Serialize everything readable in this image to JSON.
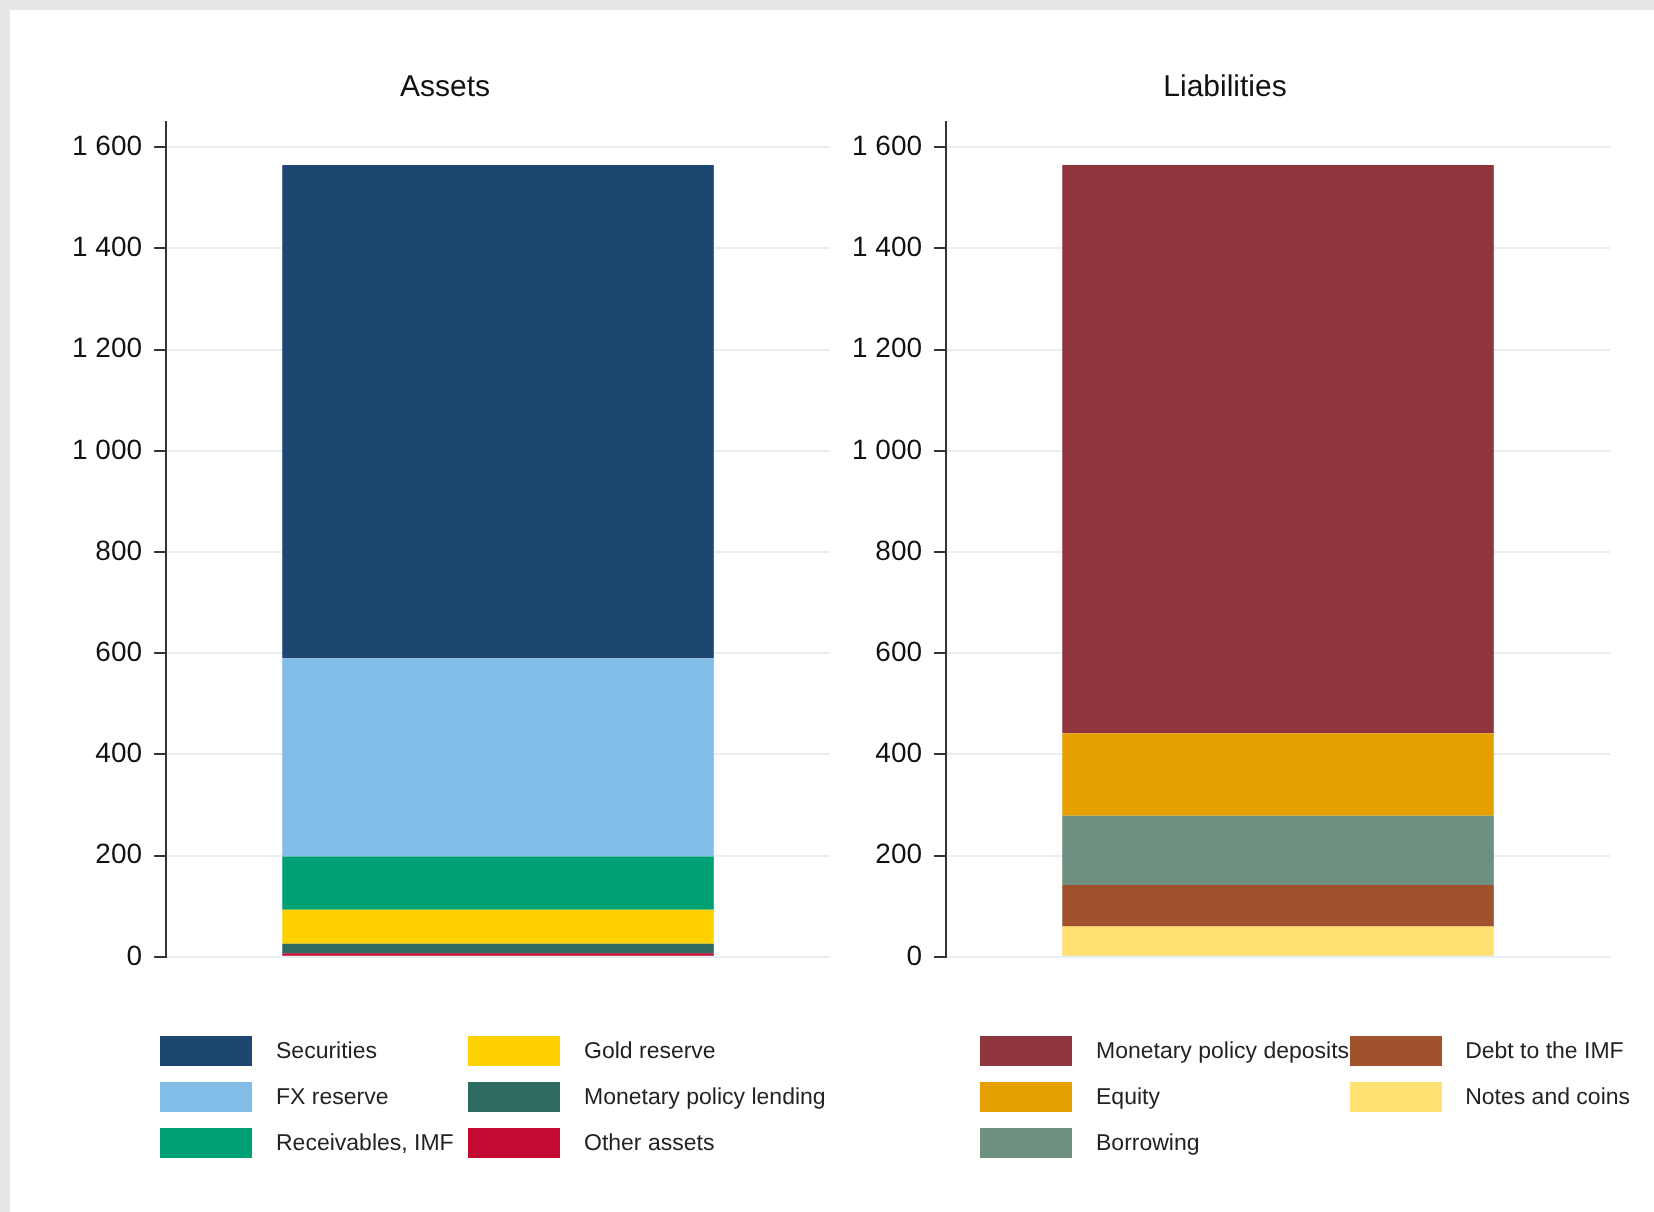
{
  "chart_data": [
    {
      "type": "bar",
      "title": "Assets",
      "categories": [
        null
      ],
      "stacked": true,
      "grid": "y",
      "legend": "bottom",
      "ylim": [
        0,
        1650
      ],
      "yticks": [
        0,
        200,
        400,
        600,
        800,
        {
          "value": 1000,
          "label": "1 000"
        },
        {
          "value": 1200,
          "label": "1 200"
        },
        {
          "value": 1400,
          "label": "1 400"
        },
        {
          "value": 1600,
          "label": "1 600"
        }
      ],
      "series": [
        {
          "name": "Other assets",
          "color": "#c20a33",
          "values": [
            7
          ]
        },
        {
          "name": "Monetary policy lending",
          "color": "#2e6b61",
          "values": [
            19
          ]
        },
        {
          "name": "Gold reserve",
          "color": "#ffd100",
          "values": [
            67
          ]
        },
        {
          "name": "Receivables, IMF",
          "color": "#00a075",
          "values": [
            105
          ]
        },
        {
          "name": "FX reserve",
          "color": "#82bde8",
          "values": [
            392
          ]
        },
        {
          "name": "Securities",
          "color": "#1d4670",
          "values": [
            975
          ]
        }
      ]
    },
    {
      "type": "bar",
      "title": "Liabilities",
      "categories": [
        null
      ],
      "stacked": true,
      "grid": "y",
      "legend": "bottom",
      "ylim": [
        0,
        1650
      ],
      "yticks": [
        0,
        200,
        400,
        600,
        800,
        {
          "value": 1000,
          "label": "1 000"
        },
        {
          "value": 1200,
          "label": "1 200"
        },
        {
          "value": 1400,
          "label": "1 400"
        },
        {
          "value": 1600,
          "label": "1 600"
        }
      ],
      "series": [
        {
          "name": "Notes and coins",
          "color": "#ffe070",
          "values": [
            60
          ]
        },
        {
          "name": "Debt to the IMF",
          "color": "#a0522d",
          "values": [
            82
          ]
        },
        {
          "name": "Borrowing",
          "color": "#6e9080",
          "values": [
            137
          ]
        },
        {
          "name": "Equity",
          "color": "#e5a000",
          "values": [
            163
          ]
        },
        {
          "name": "Monetary policy deposits",
          "color": "#8f353d",
          "values": [
            1123
          ]
        }
      ]
    }
  ]
}
